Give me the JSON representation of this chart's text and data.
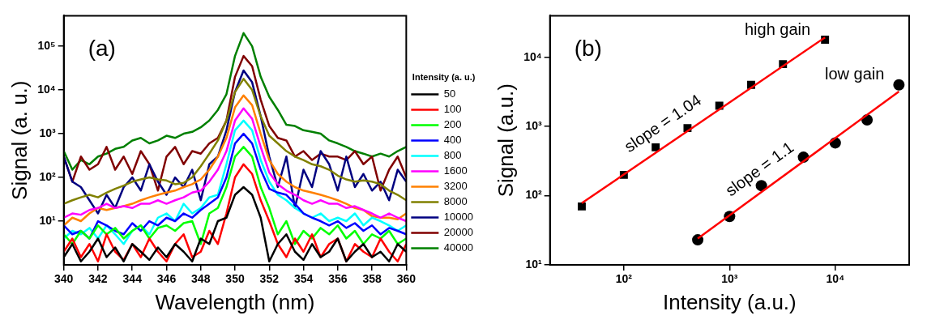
{
  "chart_data": [
    {
      "type": "line",
      "xlabel": "Wavelength (nm)",
      "ylabel": "Signal (a. u.)",
      "legend_title": "Intensity (a. u.)",
      "legend": "right",
      "log": "y",
      "grid": false,
      "marker": "none",
      "xlim": [
        340,
        360
      ],
      "xticks": [
        340,
        342,
        344,
        346,
        348,
        350,
        352,
        354,
        356,
        358,
        360
      ],
      "ylim": [
        1,
        500000
      ],
      "yticks": [
        {
          "value": 10,
          "label": "10¹"
        },
        {
          "value": 100,
          "label": "10²"
        },
        {
          "value": 1000,
          "label": "10³"
        },
        {
          "value": 10000,
          "label": "10⁴"
        },
        {
          "value": 100000,
          "label": "10⁵"
        }
      ],
      "annotations": [
        "(a)"
      ],
      "x": [
        340,
        340.5,
        341,
        341.5,
        342,
        342.5,
        343,
        343.5,
        344,
        344.5,
        345,
        345.5,
        346,
        346.5,
        347,
        347.5,
        348,
        348.5,
        349,
        349.5,
        350,
        350.5,
        351,
        351.5,
        352,
        352.5,
        353,
        353.5,
        354,
        354.5,
        355,
        355.5,
        356,
        356.5,
        357,
        357.5,
        358,
        358.5,
        359,
        359.5,
        360
      ],
      "series": [
        {
          "name": "50",
          "color": "#000000",
          "values": [
            1.5,
            3,
            1.2,
            2,
            4,
            1.5,
            2.5,
            1.2,
            3,
            2,
            1.3,
            2.5,
            1.5,
            3,
            2,
            1.2,
            4,
            3,
            10,
            12,
            40,
            60,
            40,
            12,
            1.2,
            3,
            5,
            2,
            1.3,
            3,
            1.5,
            2,
            4,
            1.2,
            2,
            3,
            1.5,
            2,
            1.2,
            3,
            2
          ]
        },
        {
          "name": "100",
          "color": "#ff0000",
          "values": [
            2,
            4,
            1.5,
            3,
            1.2,
            5,
            2,
            1.3,
            3,
            1.5,
            4,
            2,
            1.2,
            3,
            5,
            1.5,
            2,
            6,
            3,
            15,
            100,
            200,
            120,
            30,
            10,
            3,
            1.5,
            4,
            2,
            5,
            1.5,
            3,
            4,
            1.2,
            3,
            2,
            1.5,
            4,
            2,
            1.2,
            3
          ]
        },
        {
          "name": "200",
          "color": "#00ff00",
          "values": [
            5,
            3,
            6,
            4,
            8,
            5,
            7,
            4,
            6,
            8,
            4,
            7,
            8,
            6,
            9,
            10,
            3,
            15,
            20,
            60,
            300,
            500,
            300,
            60,
            20,
            5,
            10,
            3,
            6,
            4,
            7,
            5,
            8,
            4,
            6,
            3,
            5,
            4,
            6,
            3,
            4
          ]
        },
        {
          "name": "400",
          "color": "#0000ff",
          "values": [
            8,
            5,
            6,
            4,
            10,
            8,
            6,
            5,
            9,
            6,
            10,
            8,
            12,
            10,
            15,
            12,
            18,
            25,
            35,
            100,
            600,
            1000,
            600,
            150,
            55,
            45,
            40,
            25,
            15,
            12,
            10,
            8,
            10,
            7,
            9,
            6,
            8,
            5,
            7,
            6,
            5
          ]
        },
        {
          "name": "800",
          "color": "#00ffff",
          "values": [
            4,
            6,
            5,
            7,
            4,
            8,
            5,
            3,
            6,
            8,
            5,
            12,
            15,
            10,
            25,
            15,
            20,
            35,
            40,
            200,
            1200,
            2000,
            1200,
            250,
            80,
            40,
            30,
            20,
            15,
            12,
            15,
            10,
            12,
            10,
            15,
            8,
            12,
            10,
            8,
            6,
            8
          ]
        },
        {
          "name": "1600",
          "color": "#ff00ff",
          "values": [
            12,
            15,
            14,
            18,
            20,
            25,
            20,
            22,
            20,
            25,
            25,
            30,
            25,
            30,
            35,
            45,
            50,
            80,
            150,
            400,
            2000,
            3800,
            2200,
            500,
            130,
            70,
            50,
            40,
            30,
            25,
            30,
            25,
            25,
            20,
            22,
            18,
            15,
            12,
            15,
            12,
            10
          ]
        },
        {
          "name": "3200",
          "color": "#ff8000",
          "values": [
            8,
            12,
            10,
            15,
            20,
            18,
            20,
            22,
            25,
            30,
            35,
            40,
            45,
            50,
            60,
            70,
            90,
            150,
            300,
            800,
            4000,
            7500,
            4500,
            1000,
            250,
            120,
            80,
            60,
            50,
            45,
            40,
            35,
            30,
            25,
            20,
            18,
            13,
            12,
            12,
            11,
            15
          ]
        },
        {
          "name": "8000",
          "color": "#808000",
          "values": [
            25,
            30,
            35,
            40,
            35,
            45,
            55,
            65,
            80,
            90,
            100,
            90,
            85,
            70,
            75,
            100,
            180,
            350,
            700,
            2000,
            9000,
            18000,
            10000,
            2500,
            900,
            600,
            400,
            300,
            250,
            200,
            180,
            150,
            110,
            90,
            80,
            85,
            80,
            70,
            50,
            40,
            30
          ]
        },
        {
          "name": "10000",
          "color": "#000080",
          "values": [
            300,
            80,
            60,
            30,
            15,
            40,
            20,
            60,
            100,
            50,
            200,
            80,
            40,
            100,
            60,
            150,
            30,
            200,
            300,
            1200,
            9000,
            28000,
            15000,
            2500,
            300,
            60,
            300,
            20,
            150,
            60,
            400,
            200,
            50,
            300,
            60,
            120,
            50,
            80,
            30,
            150,
            80
          ]
        },
        {
          "name": "20000",
          "color": "#800000",
          "values": [
            300,
            80,
            300,
            150,
            200,
            500,
            150,
            300,
            120,
            400,
            200,
            50,
            300,
            500,
            200,
            400,
            350,
            600,
            800,
            2000,
            20000,
            60000,
            35000,
            6000,
            1500,
            800,
            700,
            300,
            400,
            250,
            350,
            300,
            300,
            250,
            400,
            200,
            300,
            50,
            150,
            300,
            100
          ]
        },
        {
          "name": "40000",
          "color": "#008000",
          "values": [
            400,
            150,
            250,
            200,
            300,
            350,
            450,
            500,
            700,
            800,
            600,
            700,
            900,
            800,
            1000,
            1100,
            1400,
            2000,
            3500,
            8000,
            60000,
            200000,
            100000,
            20000,
            7000,
            3500,
            1600,
            1500,
            1200,
            1100,
            1000,
            700,
            600,
            500,
            400,
            350,
            300,
            350,
            300,
            400,
            500
          ]
        }
      ]
    },
    {
      "type": "scatter",
      "xlabel": "Intensity (a.u.)",
      "ylabel": "Signal (a.u.)",
      "log": "xy",
      "grid": false,
      "legend": false,
      "xlim": [
        20,
        50000
      ],
      "xticks": [
        {
          "value": 100,
          "label": "10²"
        },
        {
          "value": 1000,
          "label": "10³"
        },
        {
          "value": 10000,
          "label": "10⁴"
        }
      ],
      "ylim": [
        10,
        40000
      ],
      "yticks": [
        {
          "value": 10,
          "label": "10¹"
        },
        {
          "value": 100,
          "label": "10²"
        },
        {
          "value": 1000,
          "label": "10³"
        },
        {
          "value": 10000,
          "label": "10⁴"
        }
      ],
      "annotations": [
        "(b)",
        {
          "text": "high gain",
          "x": 8000,
          "y": 18000
        },
        {
          "text": "low gain",
          "x": 40000,
          "y": 4000
        },
        {
          "text": "slope = 1.04",
          "x": 300,
          "y": 634
        },
        {
          "text": "slope = 1.1",
          "x": 2500,
          "y": 141
        }
      ],
      "series": [
        {
          "color": "#000000",
          "marker": "square",
          "x": [
            40,
            100,
            200,
            400,
            800,
            1600,
            3200,
            8000
          ],
          "values": [
            70,
            200,
            500,
            950,
            2000,
            4000,
            8000,
            18000
          ]
        },
        {
          "color": "#000000",
          "marker": "circle",
          "x": [
            500,
            1000,
            2000,
            5000,
            10000,
            20000,
            40000
          ],
          "values": [
            23,
            50,
            140,
            360,
            580,
            1250,
            4000
          ]
        },
        {
          "type": "line",
          "color": "#ff0000",
          "marker": "none",
          "x": [
            40,
            8000
          ],
          "values": [
            78,
            19400
          ]
        },
        {
          "type": "line",
          "color": "#ff0000",
          "marker": "none",
          "x": [
            500,
            40000
          ],
          "values": [
            24,
            3200
          ]
        }
      ]
    }
  ]
}
